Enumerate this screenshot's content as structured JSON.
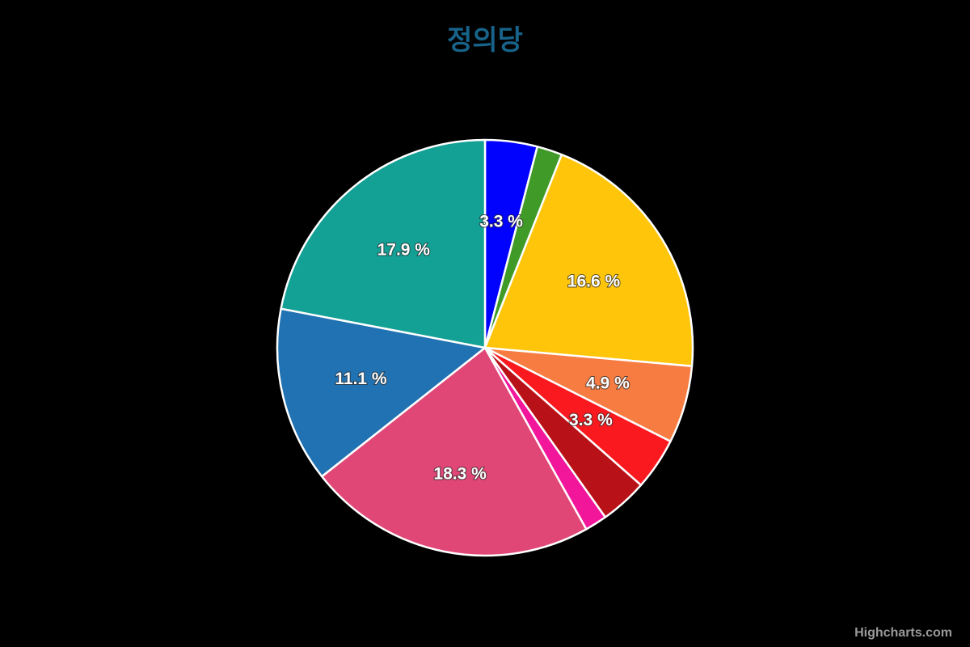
{
  "chart_data": {
    "type": "pie",
    "title": "정의당",
    "title_color": "#17638A",
    "background_color": "#000000",
    "label_color": "#ffffff",
    "legend": "off",
    "start_angle": 0,
    "label_suffix": " %",
    "slices": [
      {
        "value": 3.3,
        "label": "3.3 %",
        "label_visible": true,
        "color": "#0101FE"
      },
      {
        "value": 1.6,
        "label": "",
        "label_visible": false,
        "color": "#3F9A28"
      },
      {
        "value": 16.6,
        "label": "16.6 %",
        "label_visible": true,
        "color": "#FEC50A"
      },
      {
        "value": 4.9,
        "label": "4.9 %",
        "label_visible": true,
        "color": "#F67C42"
      },
      {
        "value": 3.3,
        "label": "3.3 %",
        "label_visible": true,
        "color": "#FA191E"
      },
      {
        "value": 3.0,
        "label": "",
        "label_visible": false,
        "color": "#B81218"
      },
      {
        "value": 1.4,
        "label": "",
        "label_visible": false,
        "color": "#F2169B"
      },
      {
        "value": 18.3,
        "label": "18.3 %",
        "label_visible": true,
        "color": "#E04777"
      },
      {
        "value": 11.1,
        "label": "11.1 %",
        "label_visible": true,
        "color": "#2072B2"
      },
      {
        "value": 17.9,
        "label": "17.9 %",
        "label_visible": true,
        "color": "#13A095"
      }
    ]
  },
  "credits": {
    "label": "Highcharts.com",
    "color": "#999999"
  }
}
